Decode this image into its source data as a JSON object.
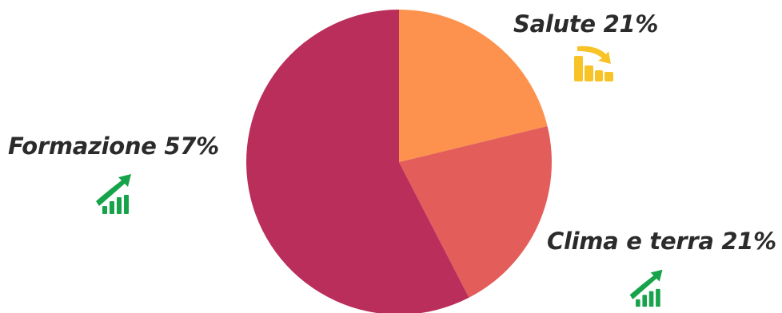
{
  "chart_data": {
    "type": "pie",
    "slices": [
      {
        "label": "Salute",
        "value": 21,
        "display": "Salute 21%",
        "color": "#fd924e"
      },
      {
        "label": "Clima e terra",
        "value": 21,
        "display": "Clima e terra 21%",
        "color": "#e35e5a"
      },
      {
        "label": "Formazione",
        "value": 57,
        "display": "Formazione 57%",
        "color": "#ba2e5b"
      }
    ],
    "start_angle": "12 o'clock",
    "direction": "clockwise",
    "legend": "none"
  },
  "icons": {
    "formazione": {
      "name": "trend-up-icon",
      "color": "#17a34a"
    },
    "salute": {
      "name": "trend-down-icon",
      "color": "#f8c326"
    },
    "clima": {
      "name": "trend-up-icon",
      "color": "#17a34a"
    }
  }
}
